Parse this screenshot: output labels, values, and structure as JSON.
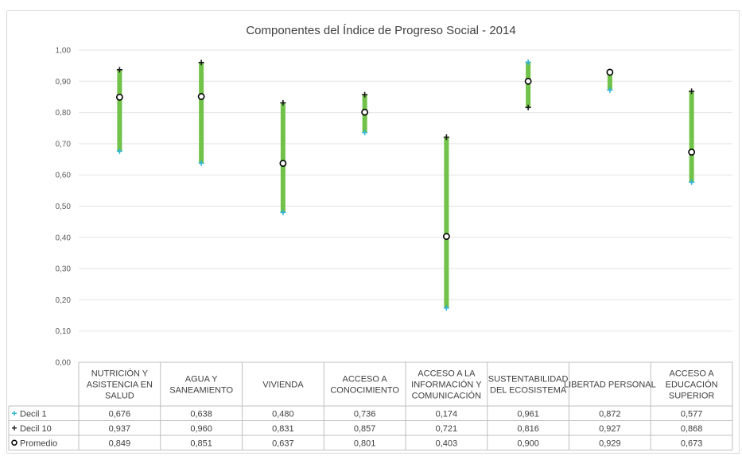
{
  "chart_data": {
    "type": "line",
    "title": "Componentes del Índice de Progreso Social - 2014",
    "categories": [
      [
        "NUTRICIÓN Y",
        "ASISTENCIA EN",
        "SALUD"
      ],
      [
        "AGUA Y",
        "SANEAMIENTO"
      ],
      [
        "VIVIENDA"
      ],
      [
        "ACCESO A",
        "CONOCIMIENTO"
      ],
      [
        "ACCESO A LA",
        "INFORMACIÓN Y",
        "COMUNICACIÓN"
      ],
      [
        "SUSTENTABILIDAD",
        "DEL ECOSISTEMA"
      ],
      [
        "LIBERTAD PERSONAL"
      ],
      [
        "ACCESO A",
        "EDUCACIÓN",
        "SUPERIOR"
      ]
    ],
    "series": [
      {
        "name": "Decil 1",
        "marker": "+",
        "color": "#2eb3d6",
        "values": [
          0.676,
          0.638,
          0.48,
          0.736,
          0.174,
          0.961,
          0.872,
          0.577
        ],
        "labels": [
          "0,676",
          "0,638",
          "0,480",
          "0,736",
          "0,174",
          "0,961",
          "0,872",
          "0,577"
        ]
      },
      {
        "name": "Decil 10",
        "marker": "+",
        "color": "#1a1a1a",
        "values": [
          0.937,
          0.96,
          0.831,
          0.857,
          0.721,
          0.816,
          0.927,
          0.868
        ],
        "labels": [
          "0,937",
          "0,960",
          "0,831",
          "0,857",
          "0,721",
          "0,816",
          "0,927",
          "0,868"
        ]
      },
      {
        "name": "Promedio",
        "marker": "o",
        "color": "#000000",
        "values": [
          0.849,
          0.851,
          0.637,
          0.801,
          0.403,
          0.9,
          0.929,
          0.673
        ],
        "labels": [
          "0,849",
          "0,851",
          "0,637",
          "0,801",
          "0,403",
          "0,900",
          "0,929",
          "0,673"
        ]
      }
    ],
    "ylim": [
      0,
      1
    ],
    "yticks": [
      "0,00",
      "0,10",
      "0,20",
      "0,30",
      "0,40",
      "0,50",
      "0,60",
      "0,70",
      "0,80",
      "0,90",
      "1,00"
    ],
    "grid": true,
    "range_bar_color": "#70c248",
    "legend": "data-table"
  }
}
